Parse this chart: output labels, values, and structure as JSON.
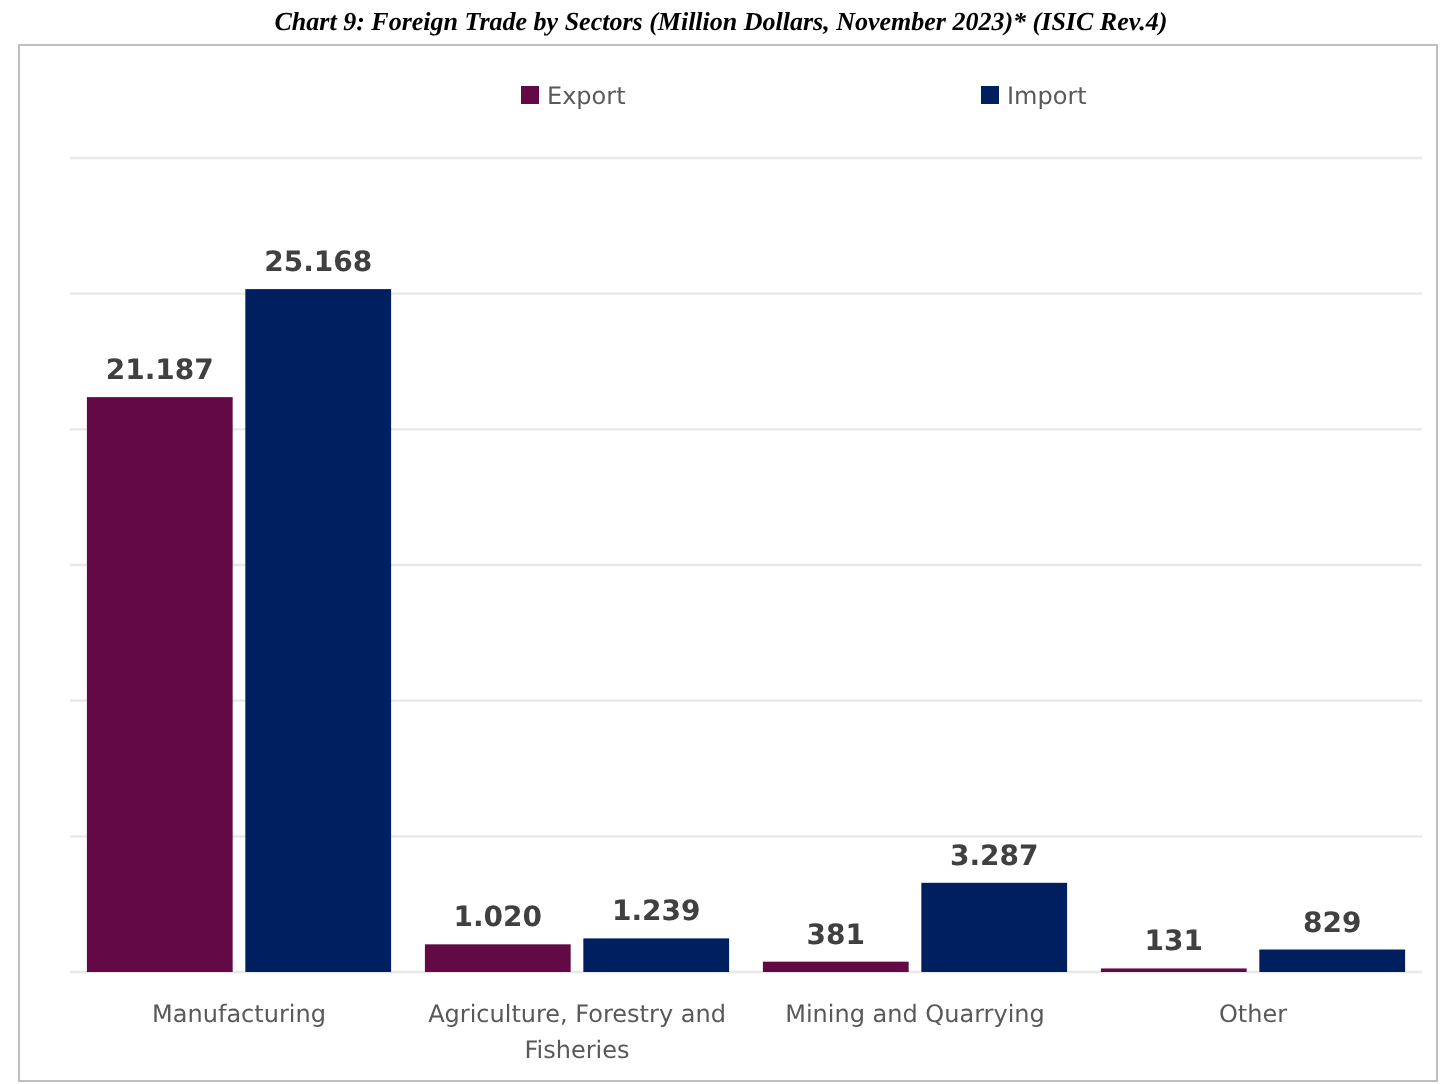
{
  "chart_data": {
    "type": "bar",
    "title": "Chart 9: Foreign Trade by Sectors (Million Dollars, November 2023)* (ISIC Rev.4)",
    "categories": [
      "Manufacturing",
      "Agriculture, Forestry and Fisheries",
      "Mining and Quarrying",
      "Other"
    ],
    "series": [
      {
        "name": "Export",
        "color": "#630a46",
        "values": [
          21187,
          1020,
          381,
          131
        ],
        "value_labels": [
          "21.187",
          "1.020",
          "381",
          "131"
        ]
      },
      {
        "name": "Import",
        "color": "#001f5e",
        "values": [
          25168,
          1239,
          3287,
          829
        ],
        "value_labels": [
          "25.168",
          "1.239",
          "3.287",
          "829"
        ]
      }
    ],
    "ylim": [
      0,
      30000
    ],
    "yticks": [
      {
        "value": 0,
        "label": null
      },
      {
        "value": 5000,
        "label": null
      },
      {
        "value": 10000,
        "label": null
      },
      {
        "value": 15000,
        "label": null
      },
      {
        "value": 20000,
        "label": null
      },
      {
        "value": 25000,
        "label": null
      },
      {
        "value": 30000,
        "label": null
      }
    ],
    "tick_labels": "x",
    "grid": "y",
    "legend": "top"
  }
}
